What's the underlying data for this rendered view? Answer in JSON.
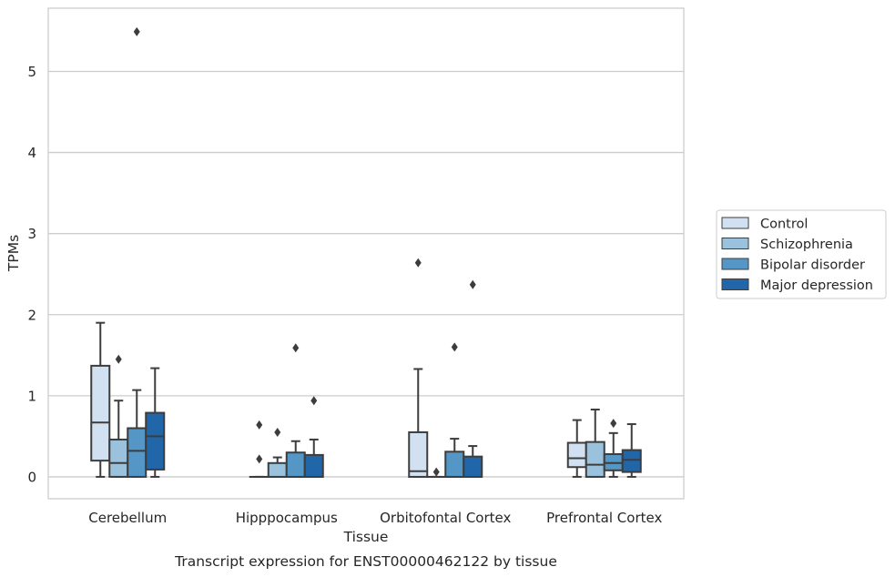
{
  "caption": "Transcript expression for ENST00000462122 by tissue",
  "chart_data": {
    "type": "boxplot",
    "xlabel": "Tissue",
    "ylabel": "TPMs",
    "ylim": [
      -0.27,
      5.78
    ],
    "yticks": [
      0,
      1,
      2,
      3,
      4,
      5
    ],
    "grid": "horizontal",
    "legend_position": "right",
    "categories": [
      "Cerebellum",
      "Hipppocampus",
      "Orbitofontal Cortex",
      "Prefrontal Cortex"
    ],
    "series": [
      {
        "name": "Control",
        "color": "#d1e1f1",
        "boxes": [
          {
            "whislo": 0.0,
            "q1": 0.2,
            "med": 0.67,
            "q3": 1.37,
            "whishi": 1.9,
            "fliers": []
          },
          {
            "whislo": 0.0,
            "q1": 0.0,
            "med": 0.0,
            "q3": 0.0,
            "whishi": 0.0,
            "fliers": [
              0.64,
              0.22
            ]
          },
          {
            "whislo": 0.0,
            "q1": 0.0,
            "med": 0.07,
            "q3": 0.55,
            "whishi": 1.33,
            "fliers": [
              2.64
            ]
          },
          {
            "whislo": 0.0,
            "q1": 0.12,
            "med": 0.23,
            "q3": 0.42,
            "whishi": 0.7,
            "fliers": []
          }
        ]
      },
      {
        "name": "Schizophrenia",
        "color": "#9ac2dc",
        "boxes": [
          {
            "whislo": 0.0,
            "q1": 0.0,
            "med": 0.17,
            "q3": 0.46,
            "whishi": 0.94,
            "fliers": [
              1.45
            ]
          },
          {
            "whislo": 0.0,
            "q1": 0.0,
            "med": 0.0,
            "q3": 0.17,
            "whishi": 0.24,
            "fliers": [
              0.55
            ]
          },
          {
            "whislo": 0.0,
            "q1": 0.0,
            "med": 0.0,
            "q3": 0.0,
            "whishi": 0.0,
            "fliers": [
              0.06
            ]
          },
          {
            "whislo": 0.0,
            "q1": 0.0,
            "med": 0.15,
            "q3": 0.43,
            "whishi": 0.83,
            "fliers": []
          }
        ]
      },
      {
        "name": "Bipolar disorder",
        "color": "#5497c7",
        "boxes": [
          {
            "whislo": 0.0,
            "q1": 0.0,
            "med": 0.32,
            "q3": 0.6,
            "whishi": 1.07,
            "fliers": [
              5.49
            ]
          },
          {
            "whislo": 0.0,
            "q1": 0.0,
            "med": 0.0,
            "q3": 0.3,
            "whishi": 0.44,
            "fliers": [
              1.59
            ]
          },
          {
            "whislo": 0.0,
            "q1": 0.0,
            "med": 0.0,
            "q3": 0.31,
            "whishi": 0.47,
            "fliers": [
              1.6
            ]
          },
          {
            "whislo": 0.0,
            "q1": 0.08,
            "med": 0.17,
            "q3": 0.28,
            "whishi": 0.54,
            "fliers": [
              0.66
            ]
          }
        ]
      },
      {
        "name": "Major depression",
        "color": "#2166a9",
        "boxes": [
          {
            "whislo": 0.0,
            "q1": 0.09,
            "med": 0.5,
            "q3": 0.79,
            "whishi": 1.34,
            "fliers": []
          },
          {
            "whislo": 0.0,
            "q1": 0.0,
            "med": 0.0,
            "q3": 0.27,
            "whishi": 0.46,
            "fliers": [
              0.94
            ]
          },
          {
            "whislo": 0.0,
            "q1": 0.0,
            "med": 0.0,
            "q3": 0.25,
            "whishi": 0.38,
            "fliers": [
              2.37
            ]
          },
          {
            "whislo": 0.0,
            "q1": 0.06,
            "med": 0.21,
            "q3": 0.33,
            "whishi": 0.65,
            "fliers": []
          }
        ]
      }
    ]
  }
}
